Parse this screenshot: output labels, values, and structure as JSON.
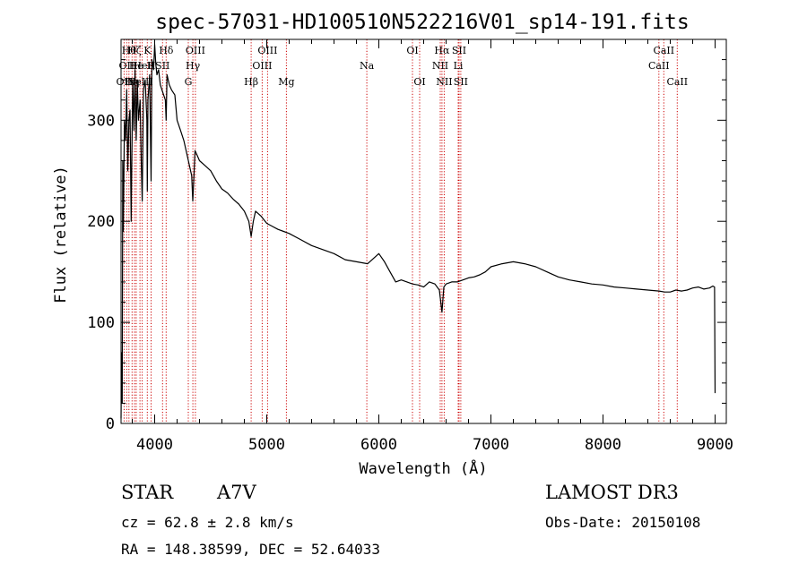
{
  "chart_data": {
    "type": "line",
    "title": "spec-57031-HD100510N522216V01_sp14-191.fits",
    "xlabel": "Wavelength (Å)",
    "ylabel": "Flux (relative)",
    "xlim": [
      3700,
      9100
    ],
    "ylim": [
      0,
      380
    ],
    "xticks": [
      4000,
      5000,
      6000,
      7000,
      8000,
      9000
    ],
    "yticks": [
      0,
      100,
      200,
      300
    ],
    "grid": false,
    "series": [
      {
        "name": "spectrum",
        "x": [
          3700,
          3705,
          3710,
          3715,
          3720,
          3730,
          3740,
          3750,
          3760,
          3770,
          3780,
          3790,
          3797,
          3805,
          3815,
          3825,
          3835,
          3845,
          3855,
          3870,
          3880,
          3889,
          3900,
          3915,
          3930,
          3934,
          3940,
          3955,
          3968,
          3975,
          3990,
          4000,
          4010,
          4020,
          4035,
          4050,
          4065,
          4080,
          4095,
          4102,
          4110,
          4130,
          4150,
          4180,
          4200,
          4230,
          4260,
          4290,
          4310,
          4330,
          4340,
          4350,
          4360,
          4380,
          4400,
          4450,
          4500,
          4550,
          4600,
          4650,
          4700,
          4750,
          4800,
          4840,
          4861,
          4880,
          4900,
          4950,
          5000,
          5050,
          5100,
          5150,
          5200,
          5300,
          5400,
          5500,
          5600,
          5700,
          5800,
          5900,
          6000,
          6050,
          6100,
          6150,
          6200,
          6250,
          6300,
          6350,
          6400,
          6450,
          6500,
          6540,
          6563,
          6580,
          6600,
          6650,
          6700,
          6750,
          6800,
          6850,
          6900,
          6950,
          7000,
          7100,
          7200,
          7300,
          7400,
          7500,
          7600,
          7700,
          7800,
          7900,
          8000,
          8100,
          8200,
          8300,
          8400,
          8500,
          8550,
          8600,
          8650,
          8700,
          8750,
          8800,
          8850,
          8900,
          8950,
          8980,
          8995,
          9000
        ],
        "values": [
          5,
          70,
          20,
          260,
          190,
          300,
          280,
          330,
          250,
          300,
          310,
          200,
          270,
          340,
          290,
          350,
          280,
          340,
          300,
          320,
          260,
          220,
          330,
          340,
          300,
          230,
          320,
          345,
          240,
          360,
          350,
          375,
          355,
          345,
          350,
          335,
          330,
          325,
          320,
          300,
          345,
          335,
          330,
          325,
          300,
          290,
          280,
          265,
          255,
          245,
          220,
          245,
          270,
          265,
          260,
          255,
          250,
          240,
          232,
          228,
          222,
          217,
          210,
          200,
          185,
          200,
          210,
          205,
          198,
          195,
          192,
          190,
          188,
          182,
          176,
          172,
          168,
          162,
          160,
          158,
          168,
          160,
          150,
          140,
          142,
          140,
          138,
          137,
          135,
          140,
          138,
          132,
          110,
          135,
          138,
          140,
          140,
          142,
          144,
          145,
          147,
          150,
          155,
          158,
          160,
          158,
          155,
          150,
          145,
          142,
          140,
          138,
          137,
          135,
          134,
          133,
          132,
          131,
          130,
          130,
          132,
          131,
          132,
          134,
          135,
          133,
          134,
          136,
          135,
          30
        ]
      }
    ],
    "lines": [
      {
        "wavelength": 3727,
        "row": 2,
        "label": "OII"
      },
      {
        "wavelength": 3750,
        "row": 1,
        "label": "OII"
      },
      {
        "wavelength": 3770,
        "row": 0,
        "label": "Hθ"
      },
      {
        "wavelength": 3798,
        "row": 2,
        "label": "Hη"
      },
      {
        "wavelength": 3820,
        "row": 0,
        "label": "Hζ"
      },
      {
        "wavelength": 3835,
        "row": 1,
        "label": "He"
      },
      {
        "wavelength": 3869,
        "row": 2,
        "label": "NeIII"
      },
      {
        "wavelength": 3889,
        "row": 1,
        "label": "HeI"
      },
      {
        "wavelength": 3934,
        "row": 0,
        "label": "K"
      },
      {
        "wavelength": 3968,
        "row": 1,
        "label": "H"
      },
      {
        "wavelength": 4070,
        "row": 1,
        "label": "SII"
      },
      {
        "wavelength": 4102,
        "row": 0,
        "label": "Hδ"
      },
      {
        "wavelength": 4300,
        "row": 2,
        "label": "G"
      },
      {
        "wavelength": 4341,
        "row": 1,
        "label": "Hγ"
      },
      {
        "wavelength": 4363,
        "row": 0,
        "label": "OIII"
      },
      {
        "wavelength": 4861,
        "row": 2,
        "label": "Hβ"
      },
      {
        "wavelength": 4959,
        "row": 1,
        "label": "OIII"
      },
      {
        "wavelength": 5007,
        "row": 0,
        "label": "OIII"
      },
      {
        "wavelength": 5175,
        "row": 2,
        "label": "Mg"
      },
      {
        "wavelength": 5893,
        "row": 1,
        "label": "Na"
      },
      {
        "wavelength": 6300,
        "row": 0,
        "label": "OI"
      },
      {
        "wavelength": 6364,
        "row": 2,
        "label": "OI"
      },
      {
        "wavelength": 6548,
        "row": 1,
        "label": "NII"
      },
      {
        "wavelength": 6563,
        "row": 0,
        "label": "Hα"
      },
      {
        "wavelength": 6583,
        "row": 2,
        "label": "NII"
      },
      {
        "wavelength": 6708,
        "row": 1,
        "label": "Li"
      },
      {
        "wavelength": 6716,
        "row": 0,
        "label": "SII"
      },
      {
        "wavelength": 6731,
        "row": 2,
        "label": "SII"
      },
      {
        "wavelength": 8498,
        "row": 1,
        "label": "CaII"
      },
      {
        "wavelength": 8542,
        "row": 0,
        "label": "CaII"
      },
      {
        "wavelength": 8662,
        "row": 2,
        "label": "CaII"
      }
    ],
    "line_color": "#cc0000",
    "spectrum_color": "#000000"
  },
  "info": {
    "object_class": "STAR",
    "subclass": "A7V",
    "survey": "LAMOST DR3",
    "redshift_text": "cz = 62.8 ± 2.8 km/s",
    "obs_date_text": "Obs-Date: 20150108",
    "coords_text": "RA = 148.38599, DEC =  52.64033"
  }
}
